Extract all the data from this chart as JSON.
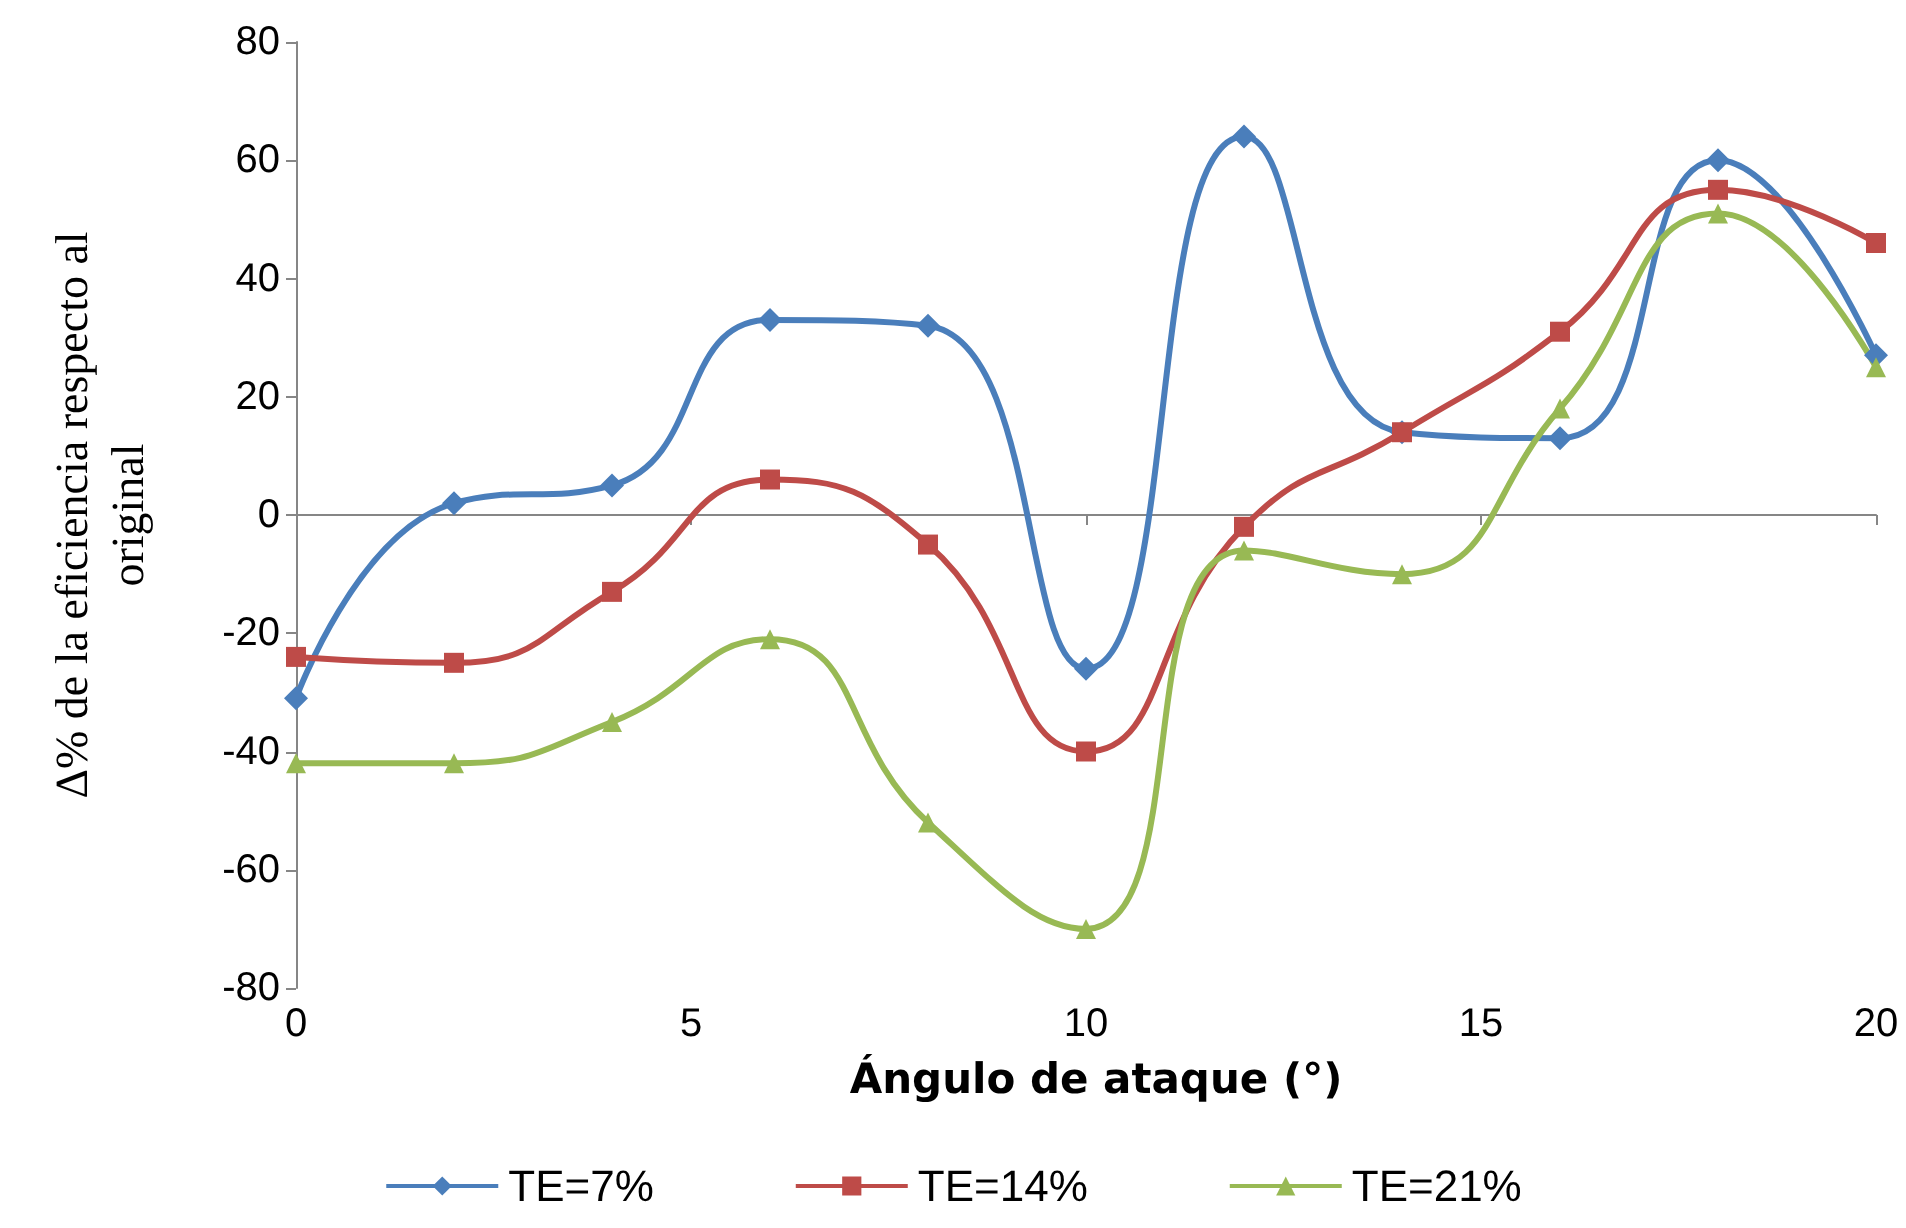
{
  "chart_data": {
    "type": "line",
    "xlabel": "Ángulo de ataque (°)",
    "ylabel": "Δ% de la eficiencia respecto al\noriginal",
    "x": [
      0,
      2,
      4,
      6,
      8,
      10,
      12,
      14,
      16,
      18,
      20
    ],
    "xlim": [
      0,
      20
    ],
    "xticks": [
      0,
      5,
      10,
      15,
      20
    ],
    "ylim": [
      -80,
      80
    ],
    "yticks": [
      -80,
      -60,
      -40,
      -20,
      0,
      20,
      40,
      60,
      80
    ],
    "legend": "bottom",
    "series": [
      {
        "name": "TE=7%",
        "color": "#4a7ebb",
        "marker": "diamond",
        "values": [
          -31,
          2,
          5,
          33,
          32,
          -26,
          64,
          14,
          13,
          60,
          27
        ]
      },
      {
        "name": "TE=14%",
        "color": "#be4b48",
        "marker": "square",
        "values": [
          -24,
          -25,
          -13,
          6,
          -5,
          -40,
          -2,
          14,
          31,
          55,
          46
        ]
      },
      {
        "name": "TE=21%",
        "color": "#98b954",
        "marker": "triangle",
        "values": [
          -42,
          -42,
          -35,
          -21,
          -52,
          -70,
          -6,
          -10,
          18,
          51,
          25
        ]
      }
    ]
  }
}
